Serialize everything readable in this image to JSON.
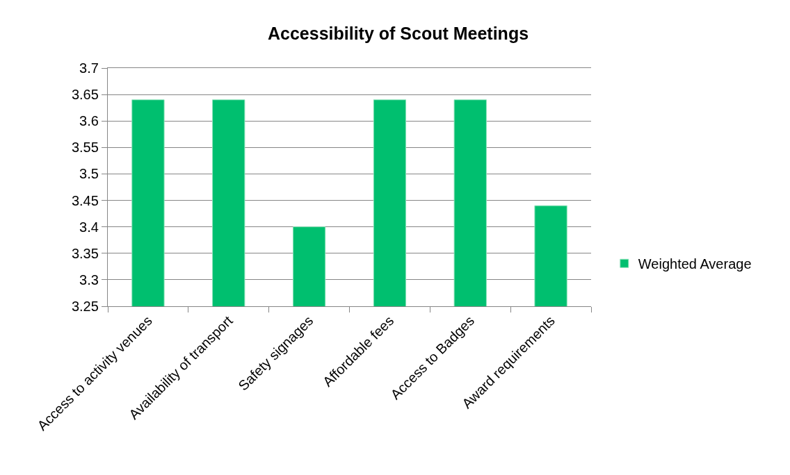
{
  "chart_data": {
    "type": "bar",
    "title": "Accessibility of Scout Meetings",
    "categories": [
      "Access to activity venues",
      "Availability of transport",
      "Safety signages",
      "Affordable fees",
      "Access to Badges",
      "Award requirements"
    ],
    "series": [
      {
        "name": "Weighted Average",
        "color": "#00bf6f",
        "values": [
          3.64,
          3.64,
          3.4,
          3.64,
          3.64,
          3.44
        ]
      }
    ],
    "ylim": [
      3.25,
      3.7
    ],
    "yticks": [
      3.25,
      3.3,
      3.35,
      3.4,
      3.45,
      3.5,
      3.55,
      3.6,
      3.65,
      3.7
    ],
    "grid": "y",
    "legend": "right"
  }
}
